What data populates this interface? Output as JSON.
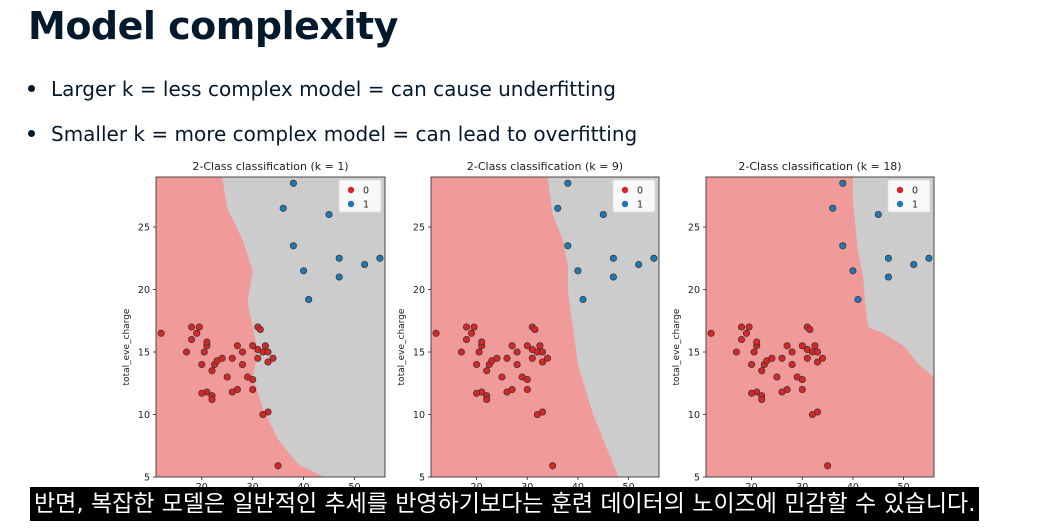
{
  "slide": {
    "title": "Model complexity",
    "bullets": [
      "Larger k = less complex model = can cause underfitting",
      "Smaller k = more complex model = can lead to overfitting"
    ]
  },
  "caption": "반면, 복잡한 모델은 일반적인 추세를 반영하기보다는 훈련 데이터의 노이즈에 민감할 수 있습니다.",
  "colors": {
    "region_0": "#f19a9a",
    "region_1": "#cccccc",
    "point_0": "#d62728",
    "point_1": "#1f77b4"
  },
  "chart_data": [
    {
      "type": "scatter",
      "title": "2-Class classification (k = 1)",
      "ylabel": "total_eve_charge",
      "xlim": [
        11,
        56
      ],
      "ylim": [
        5,
        29
      ],
      "xticks": [
        20,
        30,
        40,
        50
      ],
      "yticks": [
        5,
        10,
        15,
        20,
        25
      ],
      "legend": {
        "placement": "top-right",
        "entries": [
          "0",
          "1"
        ]
      },
      "boundary": [
        [
          24,
          29
        ],
        [
          25,
          26.5
        ],
        [
          28,
          24
        ],
        [
          30,
          21.5
        ],
        [
          29,
          19
        ],
        [
          31,
          15
        ],
        [
          30,
          13
        ],
        [
          32,
          10.5
        ],
        [
          35,
          8
        ],
        [
          39,
          6
        ],
        [
          44,
          5
        ]
      ],
      "series": [
        {
          "name": "0",
          "points": [
            [
              12,
              16.5
            ],
            [
              17,
              15
            ],
            [
              18,
              16
            ],
            [
              18,
              17
            ],
            [
              19,
              16.5
            ],
            [
              19.5,
              17
            ],
            [
              20,
              14
            ],
            [
              20.5,
              15
            ],
            [
              21,
              15.5
            ],
            [
              21,
              15.8
            ],
            [
              22,
              13.5
            ],
            [
              22.5,
              14
            ],
            [
              23,
              14.3
            ],
            [
              24,
              14.5
            ],
            [
              25,
              13
            ],
            [
              26,
              14.5
            ],
            [
              27,
              15.5
            ],
            [
              28,
              15
            ],
            [
              28,
              14
            ],
            [
              29,
              13
            ],
            [
              30,
              15.5
            ],
            [
              31,
              15.2
            ],
            [
              31,
              17
            ],
            [
              31.5,
              16.8
            ],
            [
              32,
              15
            ],
            [
              32.5,
              15.5
            ],
            [
              33,
              15
            ],
            [
              33,
              14.2
            ],
            [
              34,
              14.5
            ],
            [
              31,
              14.5
            ],
            [
              30,
              12.8
            ],
            [
              30,
              12
            ],
            [
              27,
              12
            ],
            [
              26,
              11.8
            ],
            [
              22,
              11.5
            ],
            [
              21,
              11.8
            ],
            [
              20,
              11.7
            ],
            [
              22,
              11.2
            ],
            [
              33,
              10.2
            ],
            [
              32,
              10
            ],
            [
              35,
              5.9
            ]
          ]
        },
        {
          "name": "1",
          "points": [
            [
              36,
              26.5
            ],
            [
              38,
              28.5
            ],
            [
              45,
              26
            ],
            [
              47,
              22.5
            ],
            [
              52,
              22
            ],
            [
              55,
              22.5
            ],
            [
              40,
              21.5
            ],
            [
              47,
              21
            ],
            [
              38,
              23.5
            ],
            [
              41,
              19.2
            ]
          ]
        }
      ]
    },
    {
      "type": "scatter",
      "title": "2-Class classification (k = 9)",
      "ylabel": "total_eve_charge",
      "xlim": [
        11,
        56
      ],
      "ylim": [
        5,
        29
      ],
      "xticks": [
        20,
        30,
        40,
        50
      ],
      "yticks": [
        5,
        10,
        15,
        20,
        25
      ],
      "legend": {
        "placement": "top-right",
        "entries": [
          "0",
          "1"
        ]
      },
      "boundary": [
        [
          34,
          29
        ],
        [
          35,
          26
        ],
        [
          37,
          24
        ],
        [
          38,
          22
        ],
        [
          38,
          20
        ],
        [
          39,
          17
        ],
        [
          40,
          14
        ],
        [
          43,
          10
        ],
        [
          45,
          8
        ],
        [
          48,
          5
        ]
      ],
      "series": [
        {
          "name": "0",
          "points": [
            [
              12,
              16.5
            ],
            [
              17,
              15
            ],
            [
              18,
              16
            ],
            [
              18,
              17
            ],
            [
              19,
              16.5
            ],
            [
              19.5,
              17
            ],
            [
              20,
              14
            ],
            [
              20.5,
              15
            ],
            [
              21,
              15.5
            ],
            [
              21,
              15.8
            ],
            [
              22,
              13.5
            ],
            [
              22.5,
              14
            ],
            [
              23,
              14.3
            ],
            [
              24,
              14.5
            ],
            [
              25,
              13
            ],
            [
              26,
              14.5
            ],
            [
              27,
              15.5
            ],
            [
              28,
              15
            ],
            [
              28,
              14
            ],
            [
              29,
              13
            ],
            [
              30,
              15.5
            ],
            [
              31,
              15.2
            ],
            [
              31,
              17
            ],
            [
              31.5,
              16.8
            ],
            [
              32,
              15
            ],
            [
              32.5,
              15.5
            ],
            [
              33,
              15
            ],
            [
              33,
              14.2
            ],
            [
              34,
              14.5
            ],
            [
              31,
              14.5
            ],
            [
              30,
              12.8
            ],
            [
              30,
              12
            ],
            [
              27,
              12
            ],
            [
              26,
              11.8
            ],
            [
              22,
              11.5
            ],
            [
              21,
              11.8
            ],
            [
              20,
              11.7
            ],
            [
              22,
              11.2
            ],
            [
              33,
              10.2
            ],
            [
              32,
              10
            ],
            [
              35,
              5.9
            ]
          ]
        },
        {
          "name": "1",
          "points": [
            [
              36,
              26.5
            ],
            [
              38,
              28.5
            ],
            [
              45,
              26
            ],
            [
              47,
              22.5
            ],
            [
              52,
              22
            ],
            [
              55,
              22.5
            ],
            [
              40,
              21.5
            ],
            [
              47,
              21
            ],
            [
              38,
              23.5
            ],
            [
              41,
              19.2
            ]
          ]
        }
      ]
    },
    {
      "type": "scatter",
      "title": "2-Class classification (k = 18)",
      "ylabel": "total_eve_charge",
      "xlim": [
        11,
        56
      ],
      "ylim": [
        5,
        29
      ],
      "xticks": [
        20,
        30,
        40,
        50
      ],
      "yticks": [
        5,
        10,
        15,
        20,
        25
      ],
      "legend": {
        "placement": "top-right",
        "entries": [
          "0",
          "1"
        ]
      },
      "boundary": [
        [
          40,
          29
        ],
        [
          40,
          27
        ],
        [
          40.5,
          25
        ],
        [
          41,
          23
        ],
        [
          42,
          21
        ],
        [
          42.5,
          18.5
        ],
        [
          43,
          17
        ],
        [
          46,
          16.5
        ],
        [
          50,
          15.5
        ],
        [
          53,
          14
        ],
        [
          56,
          13
        ]
      ],
      "series": [
        {
          "name": "0",
          "points": [
            [
              12,
              16.5
            ],
            [
              17,
              15
            ],
            [
              18,
              16
            ],
            [
              18,
              17
            ],
            [
              19,
              16.5
            ],
            [
              19.5,
              17
            ],
            [
              20,
              14
            ],
            [
              20.5,
              15
            ],
            [
              21,
              15.5
            ],
            [
              21,
              15.8
            ],
            [
              22,
              13.5
            ],
            [
              22.5,
              14
            ],
            [
              23,
              14.3
            ],
            [
              24,
              14.5
            ],
            [
              25,
              13
            ],
            [
              26,
              14.5
            ],
            [
              27,
              15.5
            ],
            [
              28,
              15
            ],
            [
              28,
              14
            ],
            [
              29,
              13
            ],
            [
              30,
              15.5
            ],
            [
              31,
              15.2
            ],
            [
              31,
              17
            ],
            [
              31.5,
              16.8
            ],
            [
              32,
              15
            ],
            [
              32.5,
              15.5
            ],
            [
              33,
              15
            ],
            [
              33,
              14.2
            ],
            [
              34,
              14.5
            ],
            [
              31,
              14.5
            ],
            [
              30,
              12.8
            ],
            [
              30,
              12
            ],
            [
              27,
              12
            ],
            [
              26,
              11.8
            ],
            [
              22,
              11.5
            ],
            [
              21,
              11.8
            ],
            [
              20,
              11.7
            ],
            [
              22,
              11.2
            ],
            [
              33,
              10.2
            ],
            [
              32,
              10
            ],
            [
              35,
              5.9
            ]
          ]
        },
        {
          "name": "1",
          "points": [
            [
              36,
              26.5
            ],
            [
              38,
              28.5
            ],
            [
              45,
              26
            ],
            [
              47,
              22.5
            ],
            [
              52,
              22
            ],
            [
              55,
              22.5
            ],
            [
              40,
              21.5
            ],
            [
              47,
              21
            ],
            [
              38,
              23.5
            ],
            [
              41,
              19.2
            ]
          ]
        }
      ]
    }
  ]
}
